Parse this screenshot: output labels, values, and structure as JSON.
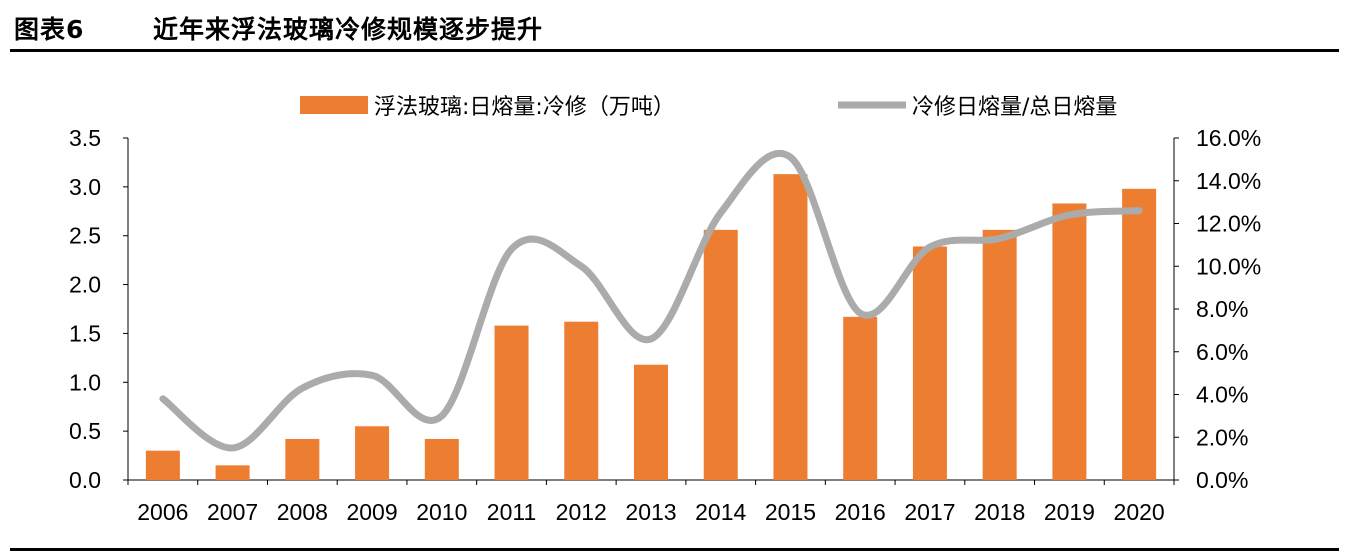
{
  "header": {
    "figure_label": "图表6",
    "title": "近年来浮法玻璃冷修规模逐步提升"
  },
  "colors": {
    "bar": "#ED7D31",
    "line": "#ABABAB",
    "axis": "#000000"
  },
  "chart_data": {
    "type": "bar",
    "categories": [
      "2006",
      "2007",
      "2008",
      "2009",
      "2010",
      "2011",
      "2012",
      "2013",
      "2014",
      "2015",
      "2016",
      "2017",
      "2018",
      "2019",
      "2020"
    ],
    "series": [
      {
        "name": "浮法玻璃:日熔量:冷修（万吨）",
        "type": "bar",
        "axis": "left",
        "values": [
          0.3,
          0.15,
          0.42,
          0.55,
          0.42,
          1.58,
          1.62,
          1.18,
          2.56,
          3.13,
          1.67,
          2.39,
          2.56,
          2.83,
          2.98
        ]
      },
      {
        "name": "冷修日熔量/总日熔量",
        "type": "line",
        "axis": "right",
        "values": [
          0.038,
          0.015,
          0.043,
          0.049,
          0.03,
          0.108,
          0.1,
          0.066,
          0.125,
          0.151,
          0.078,
          0.109,
          0.113,
          0.124,
          0.126
        ]
      }
    ],
    "left_axis": {
      "ylim": [
        0,
        3.5
      ],
      "ticks": [
        "0.0",
        "0.5",
        "1.0",
        "1.5",
        "2.0",
        "2.5",
        "3.0",
        "3.5"
      ]
    },
    "right_axis": {
      "ylim": [
        0,
        0.16
      ],
      "ticks": [
        "0.0%",
        "2.0%",
        "4.0%",
        "6.0%",
        "8.0%",
        "10.0%",
        "12.0%",
        "14.0%",
        "16.0%"
      ]
    },
    "legend": {
      "placement": "top",
      "bar_label": "浮法玻璃:日熔量:冷修（万吨）",
      "line_label": "冷修日熔量/总日熔量"
    },
    "grid": false
  }
}
